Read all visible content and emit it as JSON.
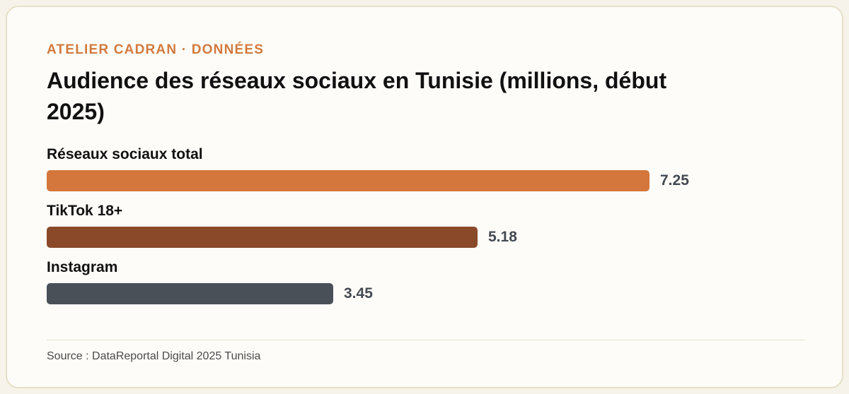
{
  "kicker": "ATELIER CADRAN · DONNÉES",
  "source": "Source : DataReportal Digital 2025 Tunisia",
  "colors": {
    "accent": "#d27a3e",
    "bar_1": "#d4773c",
    "bar_2": "#8a4a2a",
    "bar_3": "#4a5058"
  },
  "chart_data": {
    "type": "bar",
    "orientation": "horizontal",
    "title": "Audience des réseaux sociaux en Tunisie (millions, début 2025)",
    "categories": [
      "Réseaux sociaux total",
      "TikTok 18+",
      "Instagram"
    ],
    "values": [
      7.25,
      5.18,
      3.45
    ],
    "value_labels": [
      "7.25",
      "5.18",
      "3.45"
    ],
    "xlim": [
      0,
      7.25
    ],
    "grid": false,
    "legend": "none"
  }
}
